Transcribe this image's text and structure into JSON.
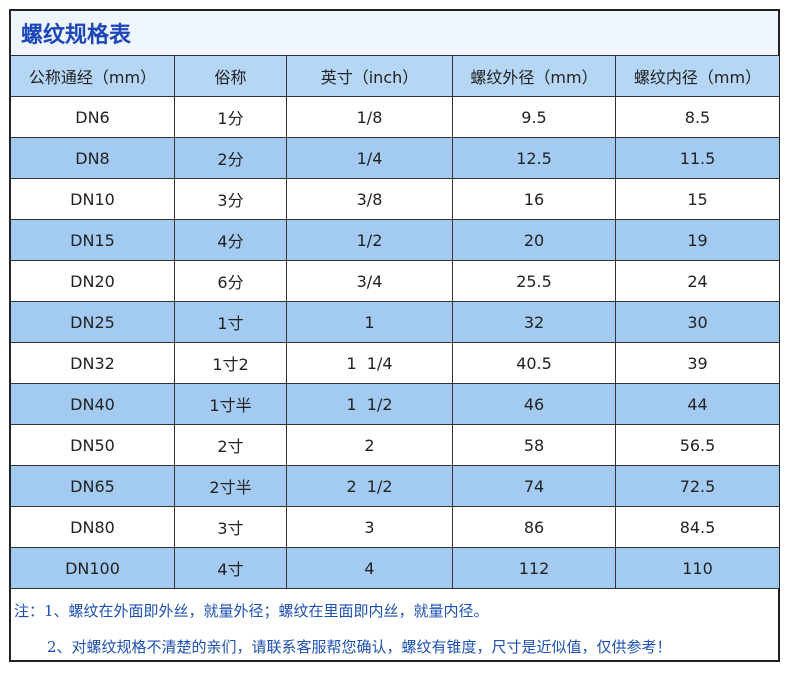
{
  "title": "螺纹规格表",
  "table": {
    "headers": [
      "公称通经（mm）",
      "俗称",
      "英寸（inch）",
      "螺纹外径（mm）",
      "螺纹内径（mm）"
    ],
    "rows": [
      [
        "DN6",
        "1分",
        "1/8",
        "9.5",
        "8.5"
      ],
      [
        "DN8",
        "2分",
        "1/4",
        "12.5",
        "11.5"
      ],
      [
        "DN10",
        "3分",
        "3/8",
        "16",
        "15"
      ],
      [
        "DN15",
        "4分",
        "1/2",
        "20",
        "19"
      ],
      [
        "DN20",
        "6分",
        "3/4",
        "25.5",
        "24"
      ],
      [
        "DN25",
        "1寸",
        "1",
        "32",
        "30"
      ],
      [
        "DN32",
        "1寸2",
        "1  1/4",
        "40.5",
        "39"
      ],
      [
        "DN40",
        "1寸半",
        "1  1/2",
        "46",
        "44"
      ],
      [
        "DN50",
        "2寸",
        "2",
        "58",
        "56.5"
      ],
      [
        "DN65",
        "2寸半",
        "2  1/2",
        "74",
        "72.5"
      ],
      [
        "DN80",
        "3寸",
        "3",
        "86",
        "84.5"
      ],
      [
        "DN100",
        "4寸",
        "4",
        "112",
        "110"
      ]
    ]
  },
  "notes": [
    "注：1、螺纹在外面即外丝，就量外径；螺纹在里面即内丝，就量内径。",
    "2、对螺纹规格不清楚的亲们，请联系客服帮您确认，螺纹有锥度，尺寸是近似值，仅供参考！"
  ]
}
